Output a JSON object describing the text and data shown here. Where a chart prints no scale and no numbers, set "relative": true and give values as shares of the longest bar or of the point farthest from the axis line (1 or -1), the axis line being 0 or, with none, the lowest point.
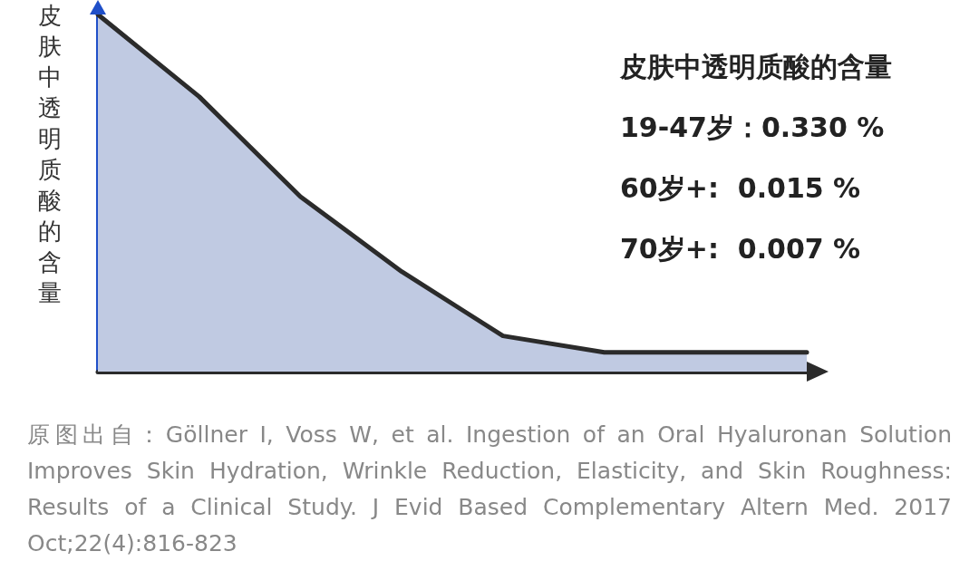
{
  "chart_data": {
    "type": "area",
    "relative": true,
    "ylabel": "皮肤中透明质酸的含量",
    "categories": [
      null,
      null,
      null,
      null,
      null,
      null,
      null,
      null
    ],
    "marker": "none",
    "line_style": "solid",
    "series": [
      {
        "color": "#2b2b2b",
        "values": [
          1,
          0.77,
          0.49,
          0.28,
          0.1,
          0.054,
          0.054,
          0.054
        ]
      }
    ],
    "annotations": [
      "皮肤中透明质酸的含量",
      "19-47岁：0.330 %",
      "60岁+:  0.015 %",
      "70岁+:  0.007 %",
      "原图出自：Göllner I, Voss W, et al. Ingestion of an Oral Hyaluronan Solution Improves Skin Hydration, Wrinkle Reduction, Elasticity, and Skin Roughness: Results of a Clinical Study.  J Evid Based Complementary Altern Med. 2017 Oct;22(4):816-823"
    ]
  }
}
